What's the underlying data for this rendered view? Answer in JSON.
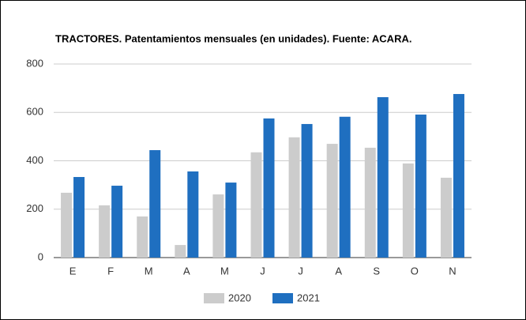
{
  "chart_data": {
    "type": "bar",
    "title": "TRACTORES. Patentamientos mensuales (en unidades). Fuente: ACARA.",
    "categories": [
      "E",
      "F",
      "M",
      "A",
      "M",
      "J",
      "J",
      "A",
      "S",
      "O",
      "N"
    ],
    "series": [
      {
        "name": "2020",
        "color": "#cccccc",
        "values": [
          268,
          216,
          170,
          52,
          261,
          435,
          497,
          470,
          454,
          389,
          330
        ]
      },
      {
        "name": "2021",
        "color": "#1f6fc0",
        "values": [
          333,
          297,
          444,
          356,
          310,
          575,
          552,
          582,
          663,
          591,
          676
        ]
      }
    ],
    "ylim": [
      0,
      800
    ],
    "yticks": [
      0,
      200,
      400,
      600,
      800
    ],
    "grid": true,
    "legend": "bottom"
  }
}
